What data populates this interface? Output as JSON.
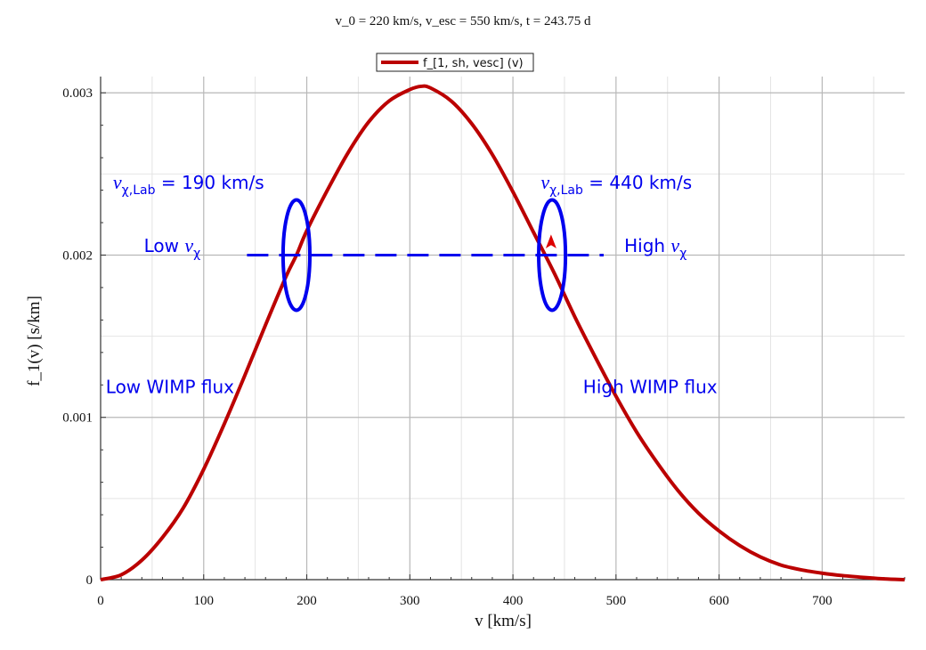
{
  "chart_data": {
    "type": "line",
    "title": "v_0 = 220 km/s, v_esc = 550 km/s, t = 243.75 d",
    "xlabel": "v [km/s]",
    "ylabel": "f_1(v) [s/km]",
    "xlim": [
      0,
      780
    ],
    "ylim": [
      0,
      0.0031
    ],
    "grid": true,
    "legend_position": "top-center",
    "x_ticks": [
      0,
      100,
      200,
      300,
      400,
      500,
      600,
      700
    ],
    "x_tick_labels": [
      "0",
      "100",
      "200",
      "300",
      "400",
      "500",
      "600",
      "700"
    ],
    "y_ticks": [
      0,
      0.001,
      0.002,
      0.003
    ],
    "y_tick_labels": [
      "0",
      "0.001",
      "0.002",
      "0.003"
    ],
    "series": [
      {
        "name": "f_[1, sh, vesc] (v)",
        "color": "#bb0000",
        "x": [
          0,
          20,
          40,
          60,
          80,
          100,
          120,
          140,
          160,
          180,
          190,
          200,
          220,
          240,
          260,
          280,
          300,
          311,
          320,
          340,
          360,
          380,
          400,
          420,
          440,
          460,
          480,
          500,
          520,
          540,
          560,
          580,
          600,
          620,
          640,
          660,
          680,
          700,
          720,
          740,
          760,
          780
        ],
        "y": [
          0,
          3e-05,
          0.00012,
          0.00026,
          0.00044,
          0.00068,
          0.00096,
          0.00126,
          0.00157,
          0.00187,
          0.002,
          0.00215,
          0.0024,
          0.00263,
          0.00282,
          0.00295,
          0.00302,
          0.00304,
          0.00303,
          0.00295,
          0.00281,
          0.00262,
          0.00239,
          0.00214,
          0.00189,
          0.00162,
          0.00137,
          0.00113,
          0.00091,
          0.00072,
          0.00055,
          0.00041,
          0.0003,
          0.00021,
          0.00014,
          9e-05,
          6e-05,
          4e-05,
          2.5e-05,
          1.4e-05,
          5e-06,
          0
        ]
      }
    ],
    "annotations": {
      "dashed_line": {
        "x_start": 142,
        "x_end": 488,
        "y": 0.002,
        "color": "#0000ee"
      },
      "ellipses": [
        {
          "name": "low-velocity-ellipse",
          "cx": 190,
          "cy": 0.002,
          "rx": 13,
          "ry": 0.00034,
          "color": "#0000ee"
        },
        {
          "name": "high-velocity-ellipse",
          "cx": 438,
          "cy": 0.002,
          "rx": 13,
          "ry": 0.00034,
          "color": "#0000ee"
        }
      ],
      "labels": [
        {
          "name": "low-vlab-label",
          "text": "v_χ,Lab = 190 km/s",
          "main": "v",
          "sub": "χ,Lab",
          "rest": " = 190 km/s",
          "x": 12,
          "y": 0.00241,
          "color": "#0000ee"
        },
        {
          "name": "high-vlab-label",
          "text": "v_χ,Lab = 440 km/s",
          "main": "v",
          "sub": "χ,Lab",
          "rest": " = 440 km/s",
          "x": 427,
          "y": 0.00241,
          "color": "#0000ee"
        },
        {
          "name": "low-v-label",
          "text": "Low v_χ",
          "prefix": "Low ",
          "main": "v",
          "sub": "χ",
          "rest": "",
          "x": 42,
          "y": 0.00202,
          "color": "#0000ee"
        },
        {
          "name": "high-v-label",
          "text": "High v_χ",
          "prefix": "High ",
          "main": "v",
          "sub": "χ",
          "rest": "",
          "x": 508,
          "y": 0.00202,
          "color": "#0000ee"
        },
        {
          "name": "low-flux-label",
          "text": "Low WIMP flux",
          "prefix": "Low WIMP flux",
          "main": "",
          "sub": "",
          "rest": "",
          "x": 5,
          "y": 0.00115,
          "color": "#0000ee"
        },
        {
          "name": "high-flux-label",
          "text": "High WIMP flux",
          "prefix": "High WIMP flux",
          "main": "",
          "sub": "",
          "rest": "",
          "x": 468,
          "y": 0.00115,
          "color": "#0000ee"
        }
      ],
      "cursor_arrow": {
        "x": 437,
        "y": 0.00207,
        "color": "#dd0000"
      }
    }
  }
}
